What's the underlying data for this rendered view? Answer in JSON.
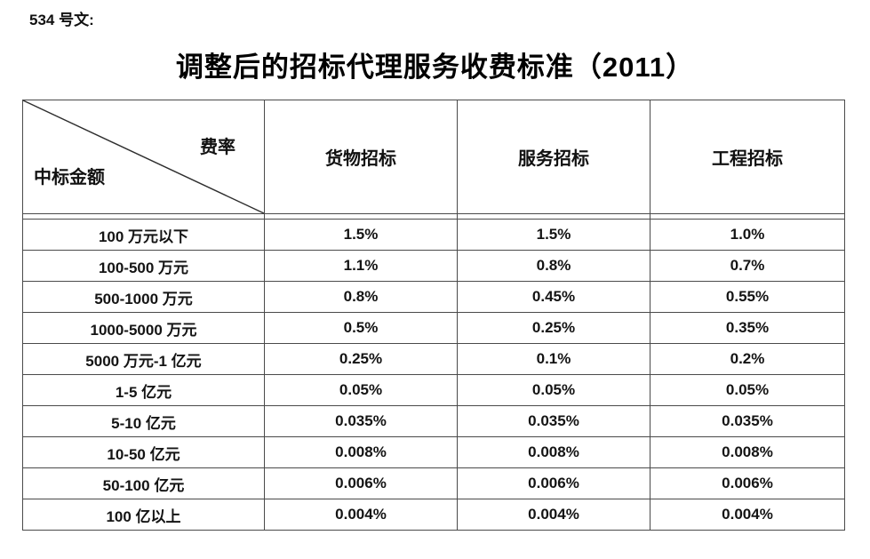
{
  "page": {
    "doc_label": "534 号文:",
    "title": "调整后的招标代理服务收费标准（2011）"
  },
  "table": {
    "corner": {
      "top_right": "费率",
      "bottom_left": "中标金额"
    },
    "columns": [
      "货物招标",
      "服务招标",
      "工程招标"
    ],
    "rows": [
      {
        "label": "100 万元以下",
        "values": [
          "1.5%",
          "1.5%",
          "1.0%"
        ]
      },
      {
        "label": "100-500 万元",
        "values": [
          "1.1%",
          "0.8%",
          "0.7%"
        ]
      },
      {
        "label": "500-1000 万元",
        "values": [
          "0.8%",
          "0.45%",
          "0.55%"
        ]
      },
      {
        "label": "1000-5000 万元",
        "values": [
          "0.5%",
          "0.25%",
          "0.35%"
        ]
      },
      {
        "label": "5000 万元-1 亿元",
        "values": [
          "0.25%",
          "0.1%",
          "0.2%"
        ]
      },
      {
        "label": "1-5 亿元",
        "values": [
          "0.05%",
          "0.05%",
          "0.05%"
        ]
      },
      {
        "label": "5-10 亿元",
        "values": [
          "0.035%",
          "0.035%",
          "0.035%"
        ]
      },
      {
        "label": "10-50 亿元",
        "values": [
          "0.008%",
          "0.008%",
          "0.008%"
        ]
      },
      {
        "label": "50-100 亿元",
        "values": [
          "0.006%",
          "0.006%",
          "0.006%"
        ]
      },
      {
        "label": "100 亿以上",
        "values": [
          "0.004%",
          "0.004%",
          "0.004%"
        ]
      }
    ]
  },
  "colors": {
    "text": "#1a1a1a",
    "border": "#4a4a4a",
    "background": "#ffffff"
  }
}
